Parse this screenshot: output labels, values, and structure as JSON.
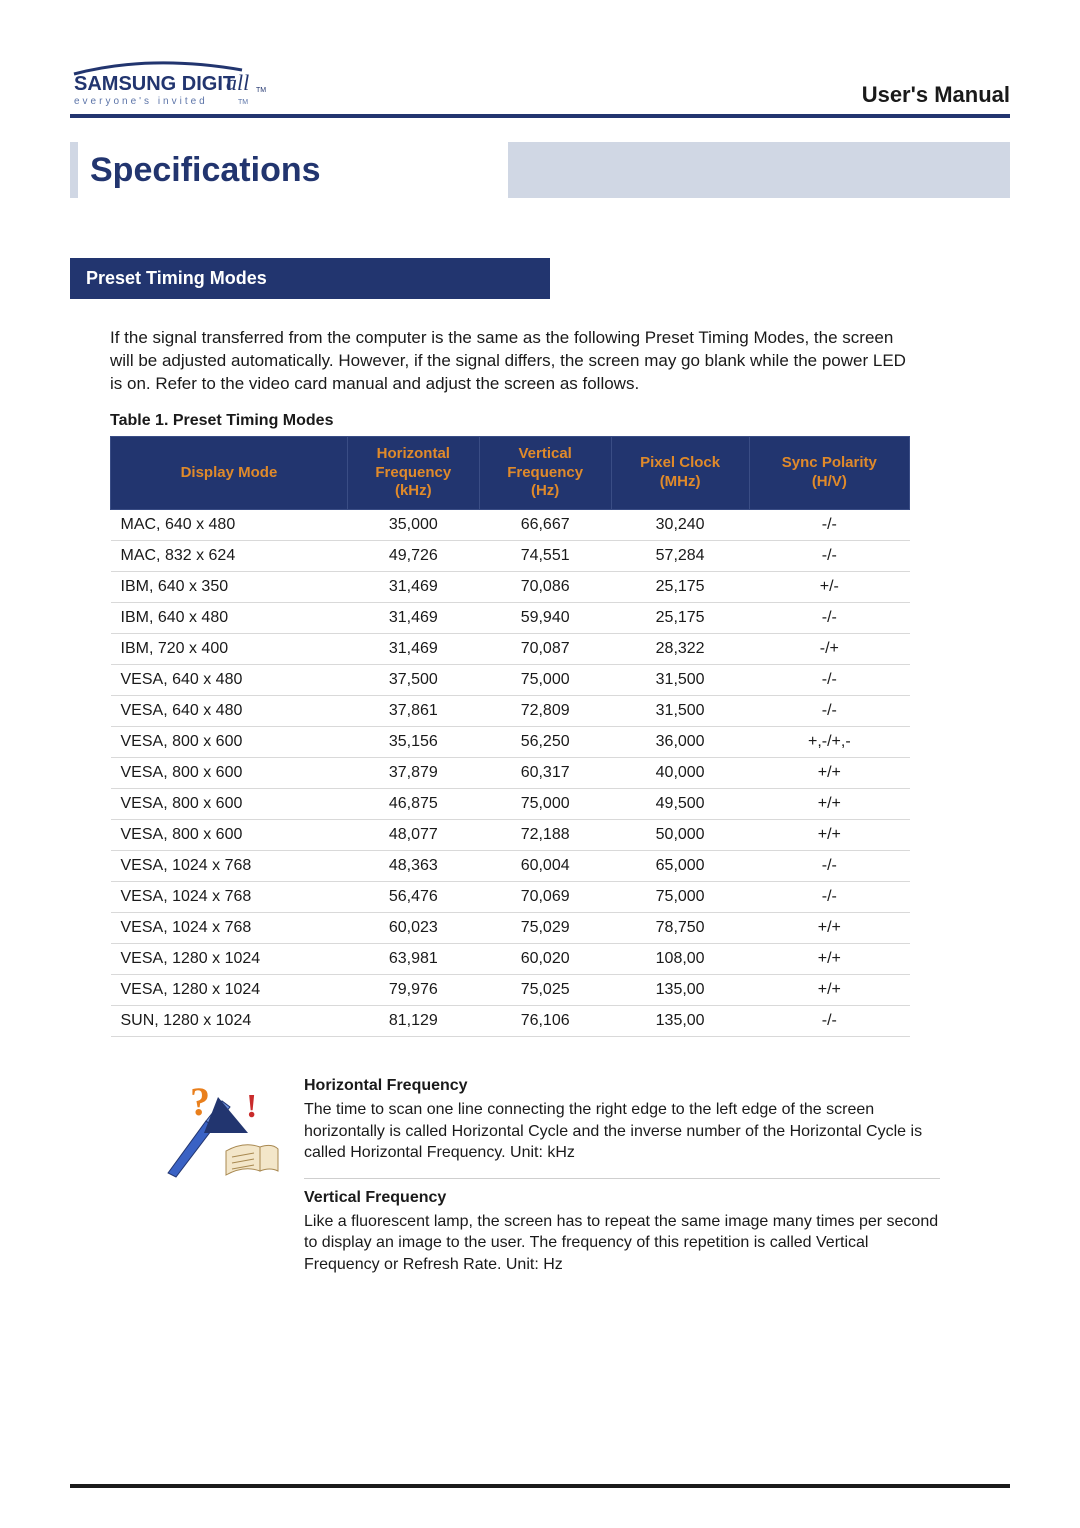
{
  "header": {
    "brand_main": "SAMSUNG DIGIT",
    "brand_script": "all",
    "brand_tm": "TM",
    "tagline": "everyone's invited",
    "manual_title": "User's Manual"
  },
  "title_bar": {
    "title": "Specifications"
  },
  "section": {
    "title": "Preset Timing Modes",
    "intro": "If the signal transferred from the computer is the same as the following Preset Timing Modes, the screen will be adjusted automatically. However, if the signal differs, the screen may go blank while the power LED is on. Refer to the video card manual and adjust the screen as follows.",
    "table_caption": "Table 1. Preset Timing Modes"
  },
  "table": {
    "columns": [
      "Display Mode",
      "Horizontal Frequency (kHz)",
      "Vertical Frequency (Hz)",
      "Pixel Clock (MHz)",
      "Sync Polarity (H/V)"
    ],
    "column_html": [
      "Display Mode",
      "Horizontal<br>Frequency<br>(kHz)",
      "Vertical<br>Frequency<br>(Hz)",
      "Pixel Clock<br>(MHz)",
      "Sync Polarity<br>(H/V)"
    ],
    "rows": [
      [
        "MAC, 640 x 480",
        "35,000",
        "66,667",
        "30,240",
        "-/-"
      ],
      [
        "MAC, 832 x 624",
        "49,726",
        "74,551",
        "57,284",
        "-/-"
      ],
      [
        "IBM, 640 x 350",
        "31,469",
        "70,086",
        "25,175",
        "+/-"
      ],
      [
        "IBM, 640 x 480",
        "31,469",
        "59,940",
        "25,175",
        "-/-"
      ],
      [
        "IBM, 720 x 400",
        "31,469",
        "70,087",
        "28,322",
        "-/+"
      ],
      [
        "VESA, 640 x 480",
        "37,500",
        "75,000",
        "31,500",
        "-/-"
      ],
      [
        "VESA, 640 x 480",
        "37,861",
        "72,809",
        "31,500",
        "-/-"
      ],
      [
        "VESA, 800 x 600",
        "35,156",
        "56,250",
        "36,000",
        "+,-/+,-"
      ],
      [
        "VESA, 800 x 600",
        "37,879",
        "60,317",
        "40,000",
        "+/+"
      ],
      [
        "VESA, 800 x 600",
        "46,875",
        "75,000",
        "49,500",
        "+/+"
      ],
      [
        "VESA, 800 x 600",
        "48,077",
        "72,188",
        "50,000",
        "+/+"
      ],
      [
        "VESA, 1024 x 768",
        "48,363",
        "60,004",
        "65,000",
        "-/-"
      ],
      [
        "VESA, 1024 x 768",
        "56,476",
        "70,069",
        "75,000",
        "-/-"
      ],
      [
        "VESA, 1024 x 768",
        "60,023",
        "75,029",
        "78,750",
        "+/+"
      ],
      [
        "VESA, 1280 x 1024",
        "63,981",
        "60,020",
        "108,00",
        "+/+"
      ],
      [
        "VESA, 1280 x 1024",
        "79,976",
        "75,025",
        "135,00",
        "+/+"
      ],
      [
        "SUN, 1280 x 1024",
        "81,129",
        "76,106",
        "135,00",
        "-/-"
      ]
    ],
    "header_bg": "#22356f",
    "header_fg": "#e08a2a",
    "row_border": "#d9d9d9"
  },
  "definitions": [
    {
      "title": "Horizontal Frequency",
      "body": "The time to scan one line connecting the right edge to the left edge of the screen horizontally is called Horizontal Cycle and the inverse number of the Horizontal Cycle is called Horizontal Frequency. Unit: kHz"
    },
    {
      "title": "Vertical Frequency",
      "body": "Like a fluorescent lamp, the screen has to repeat the same image many times per second to display an image to the user. The frequency of this repetition is called Vertical Frequency or Refresh Rate. Unit: Hz"
    }
  ],
  "colors": {
    "brand_navy": "#22356f",
    "accent_orange": "#e08a2a",
    "bar_grey": "#d0d7e4",
    "footer_line": "#1a1a1a"
  }
}
